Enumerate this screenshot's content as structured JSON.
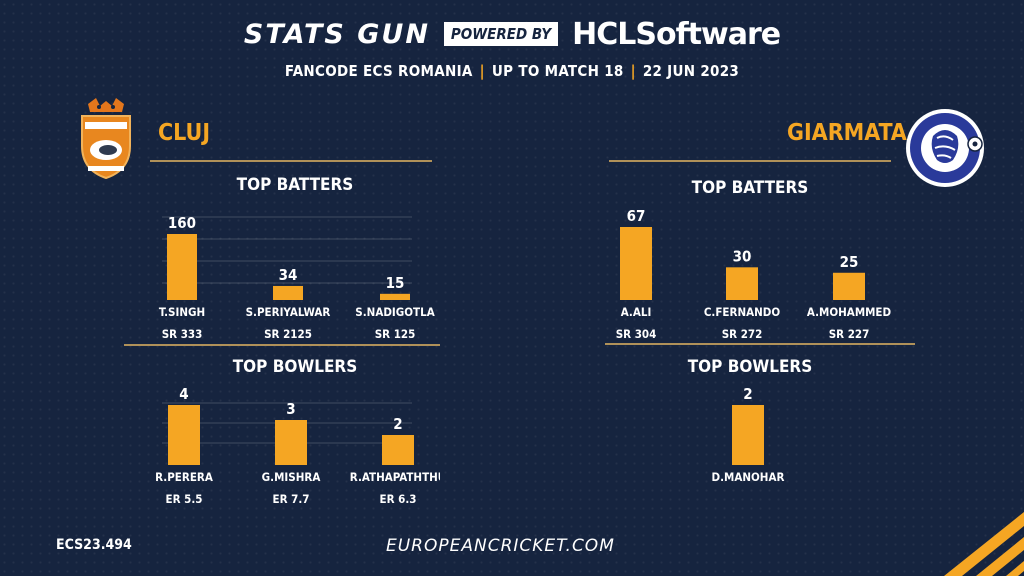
{
  "header": {
    "brand": "STATS GUN",
    "powered_by": "POWERED BY",
    "sponsor_prefix": "HCL",
    "sponsor_suffix": "Software",
    "competition": "FANCODE ECS ROMANIA",
    "range": "UP TO MATCH 18",
    "date": "22 JUN 2023"
  },
  "colors": {
    "background": "#16243f",
    "accent": "#f5a623",
    "rule": "#b09159"
  },
  "teams": {
    "left": {
      "name": "CLUJ",
      "logo_icon": "cluj-cricket-club-crest"
    },
    "right": {
      "name": "GIARMATA",
      "logo_icon": "millenium-giarmata-crest"
    }
  },
  "footer": {
    "code": "ECS23.494",
    "url": "EUROPEANCRICKET.COM"
  },
  "chart_data": [
    {
      "type": "bar",
      "team": "CLUJ",
      "title": "TOP BATTERS",
      "categories": [
        "T.SINGH",
        "S.PERIYALWAR",
        "S.NADIGOTLA"
      ],
      "values": [
        160,
        34,
        15
      ],
      "sublabels": [
        "SR 333",
        "SR 2125",
        "SR 125"
      ],
      "ylim": [
        0,
        160
      ],
      "grid": true
    },
    {
      "type": "bar",
      "team": "CLUJ",
      "title": "TOP BOWLERS",
      "categories": [
        "R.PERERA",
        "G.MISHRA",
        "R.ATHAPATHTHU"
      ],
      "values": [
        4,
        3,
        2
      ],
      "sublabels": [
        "ER 5.5",
        "ER 7.7",
        "ER 6.3"
      ],
      "ylim": [
        0,
        4
      ],
      "grid": true
    },
    {
      "type": "bar",
      "team": "GIARMATA",
      "title": "TOP BATTERS",
      "categories": [
        "A.ALI",
        "C.FERNANDO",
        "A.MOHAMMED"
      ],
      "values": [
        67,
        30,
        25
      ],
      "sublabels": [
        "SR 304",
        "SR 272",
        "SR 227"
      ],
      "ylim": [
        0,
        67
      ],
      "grid": false
    },
    {
      "type": "bar",
      "team": "GIARMATA",
      "title": "TOP BOWLERS",
      "categories": [
        "D.MANOHAR"
      ],
      "values": [
        2
      ],
      "sublabels": [],
      "ylim": [
        0,
        2
      ],
      "grid": false
    }
  ]
}
